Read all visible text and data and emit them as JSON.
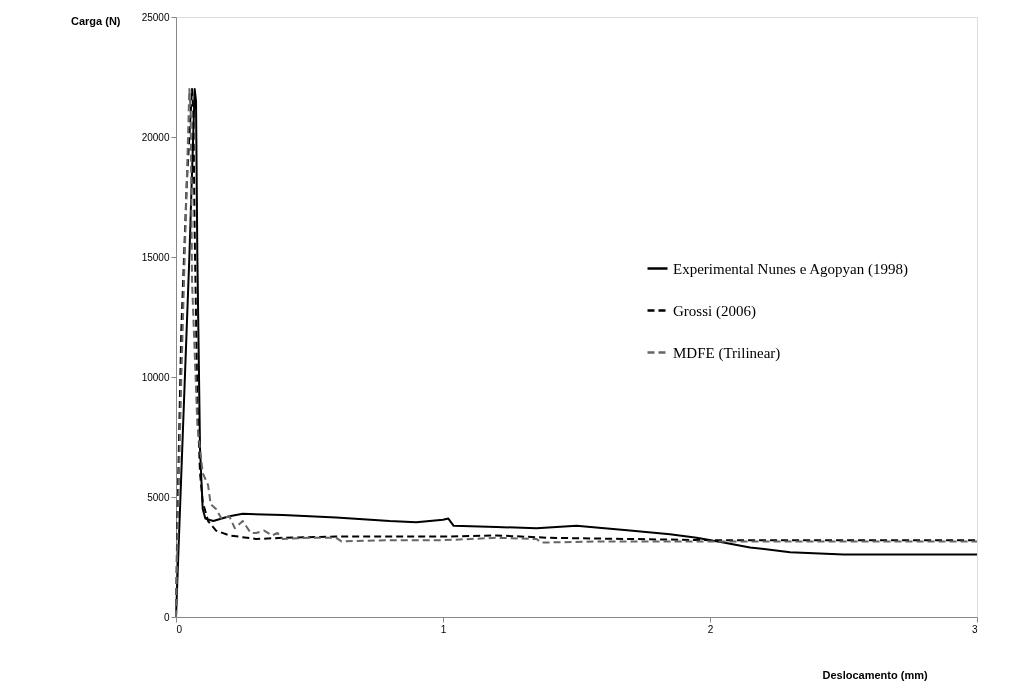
{
  "chart_data": {
    "type": "line",
    "xlabel": "Deslocamento (mm)",
    "ylabel": "Carga (N)",
    "xlim": [
      0,
      3
    ],
    "xticks": [
      0,
      1,
      2,
      3
    ],
    "ylim": [
      0,
      25000
    ],
    "yticks": [
      0,
      5000,
      10000,
      15000,
      20000,
      25000
    ],
    "grid": false,
    "legend": "right",
    "marker": "none",
    "series": [
      {
        "name": "Experimental Nunes e Agopyan (1998)",
        "color": "#000000",
        "line_style": "solid",
        "x": [
          0,
          0.01,
          0.03,
          0.05,
          0.07,
          0.075,
          0.08,
          0.09,
          0.1,
          0.11,
          0.14,
          0.2,
          0.25,
          0.4,
          0.6,
          0.8,
          0.9,
          1.0,
          1.02,
          1.04,
          1.2,
          1.35,
          1.5,
          1.7,
          1.85,
          1.95,
          2.05,
          2.15,
          2.3,
          2.5,
          2.8,
          3.0
        ],
        "values": [
          0,
          3000,
          9000,
          15000,
          22000,
          21500,
          15000,
          7000,
          4500,
          4100,
          4000,
          4200,
          4300,
          4250,
          4150,
          4000,
          3950,
          4050,
          4100,
          3800,
          3750,
          3700,
          3800,
          3600,
          3450,
          3300,
          3100,
          2900,
          2700,
          2600,
          2600,
          2600
        ]
      },
      {
        "name": "Grossi (2006)",
        "color": "#000000",
        "line_style": "dashed",
        "x": [
          0,
          0.005,
          0.02,
          0.04,
          0.06,
          0.065,
          0.07,
          0.08,
          0.09,
          0.1,
          0.12,
          0.15,
          0.2,
          0.3,
          0.4,
          0.6,
          0.8,
          1.0,
          1.2,
          1.4,
          1.7,
          2.0,
          2.5,
          3.0
        ],
        "values": [
          0,
          4000,
          12000,
          18000,
          22000,
          21000,
          16000,
          9000,
          6000,
          4800,
          4000,
          3600,
          3400,
          3250,
          3300,
          3350,
          3350,
          3350,
          3400,
          3300,
          3250,
          3200,
          3200,
          3200
        ]
      },
      {
        "name": "MDFE (Trilinear)",
        "color": "#666666",
        "line_style": "dashed",
        "x": [
          0,
          0.005,
          0.02,
          0.04,
          0.05,
          0.055,
          0.06,
          0.08,
          0.1,
          0.12,
          0.13,
          0.15,
          0.17,
          0.2,
          0.22,
          0.25,
          0.28,
          0.3,
          0.33,
          0.36,
          0.38,
          0.4,
          0.5,
          0.6,
          0.62,
          0.8,
          1.0,
          1.2,
          1.35,
          1.37,
          1.6,
          2.0,
          2.5,
          3.0
        ],
        "values": [
          0,
          3000,
          10000,
          18000,
          22000,
          21000,
          14000,
          8000,
          6000,
          5500,
          4700,
          4500,
          4100,
          4200,
          3700,
          4000,
          3500,
          3500,
          3600,
          3400,
          3500,
          3250,
          3300,
          3300,
          3150,
          3200,
          3200,
          3300,
          3250,
          3100,
          3150,
          3150,
          3150,
          3150
        ]
      }
    ]
  }
}
